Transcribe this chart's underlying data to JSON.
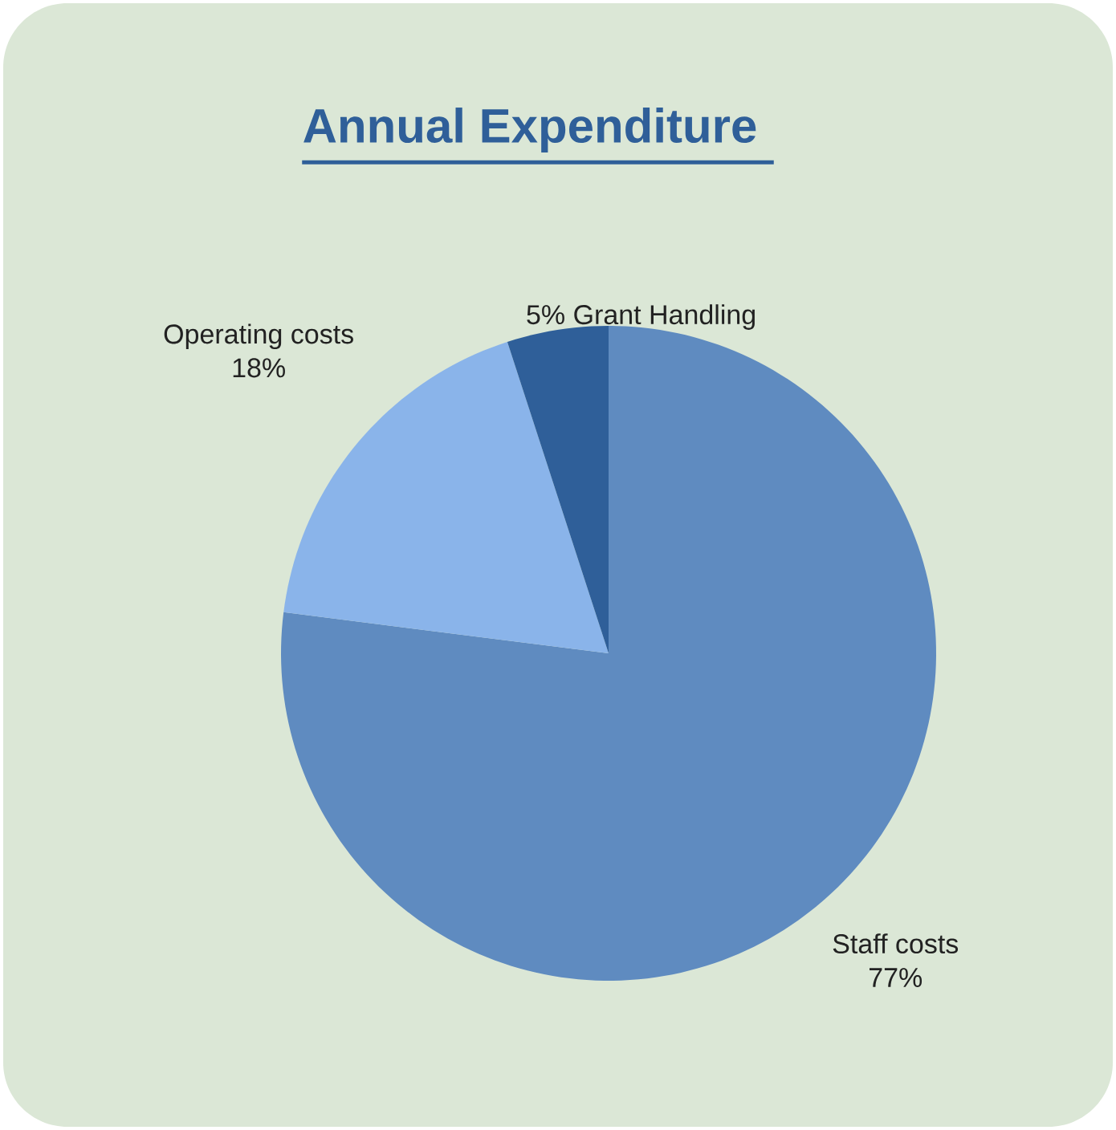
{
  "chart_data": {
    "type": "pie",
    "title": "Annual Expenditure",
    "categories": [
      "Staff costs",
      "Operating costs",
      "Grant Handling"
    ],
    "values": [
      77,
      18,
      5
    ],
    "colors": [
      "#5f8bc0",
      "#8ab4ea",
      "#2f5f99"
    ],
    "value_labels": [
      "77%",
      "18%",
      "5%"
    ]
  }
}
